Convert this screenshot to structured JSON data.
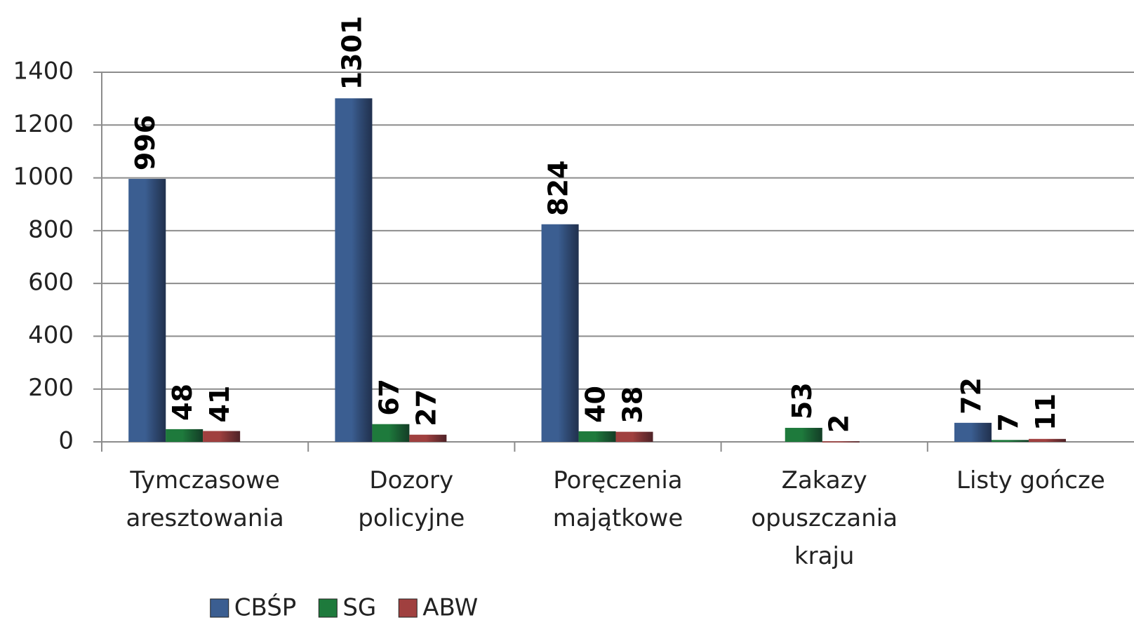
{
  "chart_data": {
    "type": "bar",
    "categories": [
      "Tymczasowe\naresztowania",
      "Dozory\npolicyjne",
      "Poręczenia\nmajątkowe",
      "Zakazy\nopuszczania\nkraju",
      "Listy gończe"
    ],
    "series": [
      {
        "name": "CBŚP",
        "color": "#3b5e91",
        "values": [
          996,
          1301,
          824,
          null,
          72
        ]
      },
      {
        "name": "SG",
        "color": "#1e7a3c",
        "values": [
          48,
          67,
          40,
          53,
          7
        ]
      },
      {
        "name": "ABW",
        "color": "#a0403f",
        "values": [
          41,
          27,
          38,
          2,
          11
        ]
      }
    ],
    "ylim": [
      0,
      1400
    ],
    "yticks": [
      0,
      200,
      400,
      600,
      800,
      1000,
      1200,
      1400
    ],
    "grid": true,
    "legend": "bottom"
  }
}
